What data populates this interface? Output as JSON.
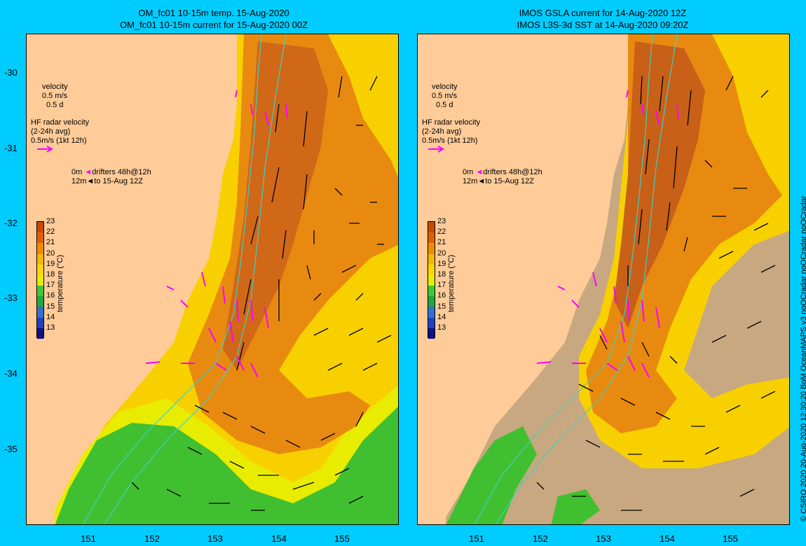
{
  "panels": [
    {
      "title1": "OM_fc01 10-15m temp. 15-Aug-2020",
      "title2": "OM_fc01 10-15m current for 15-Aug-2020 00Z"
    },
    {
      "title1": "IMOS GSLA current for 14-Aug-2020 12Z",
      "title2": "IMOS L3S-3d SST at 14-Aug-2020 09:20Z"
    }
  ],
  "legend": {
    "velocity": "velocity",
    "vel_scale1": "0.5 m/s",
    "vel_scale2": "0.5 d",
    "hf_title": "HF radar velocity",
    "hf_avg": "(2-24h avg)",
    "hf_scale": "0.5m/s (1kt 12h)",
    "drifter_0m": "0m",
    "drifter_text1": "drifters 48h@12h",
    "drifter_12m": "12m",
    "drifter_text2": "to 15-Aug 12Z"
  },
  "axes": {
    "y_ticks": [
      "-30",
      "-31",
      "-32",
      "-33",
      "-34",
      "-35"
    ],
    "x_ticks": [
      "151",
      "152",
      "153",
      "154",
      "155"
    ]
  },
  "colorbar": {
    "title": "temperature (°C)",
    "ticks": [
      "23",
      "22",
      "21",
      "20",
      "19",
      "18",
      "17",
      "16",
      "15",
      "14",
      "13"
    ],
    "colors": [
      "#c84a00",
      "#e06000",
      "#f08c00",
      "#f8b800",
      "#ffd800",
      "#e8ec00",
      "#40c830",
      "#20a840",
      "#3070d0",
      "#2040c0",
      "#101080"
    ]
  },
  "credit": "© CSIRO 2020   20-Aug-2020 12:30:20 BoM OceanMAPS v3 noQCradar noQCradar noQCradar",
  "colors": {
    "land": "#ffcc99",
    "background": "#00ccff",
    "no_data": "#c8a880",
    "warm_core": "#d07018",
    "current_arrow": "#000000",
    "radar_arrow": "#ff00ff",
    "isobath": "#40d0c0"
  }
}
